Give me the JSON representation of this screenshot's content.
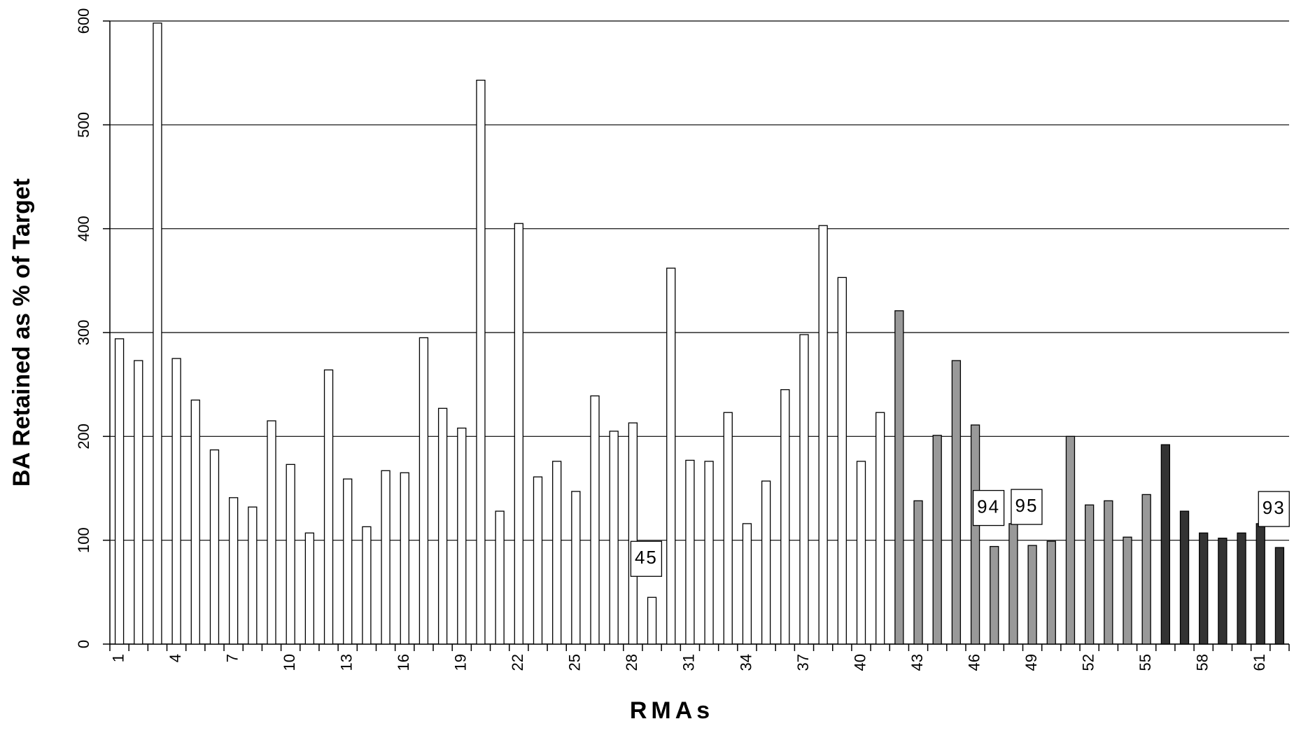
{
  "chart_data": {
    "type": "bar",
    "x_label": "RMAs",
    "y_label": "BA Retained as % of Target",
    "categories": [
      1,
      null,
      null,
      4,
      null,
      null,
      7,
      null,
      null,
      10,
      null,
      null,
      13,
      null,
      null,
      16,
      null,
      null,
      19,
      null,
      null,
      22,
      null,
      null,
      25,
      null,
      null,
      28,
      null,
      null,
      31,
      null,
      null,
      34,
      null,
      null,
      37,
      null,
      null,
      40,
      null,
      null,
      43,
      null,
      null,
      46,
      null,
      null,
      49,
      null,
      null,
      52,
      null,
      null,
      55,
      null,
      null,
      58,
      null,
      null,
      61,
      null
    ],
    "series": [
      {
        "color": "#ffffff",
        "values": [
          294,
          273,
          598,
          275,
          235,
          187,
          141,
          132,
          215,
          173,
          107,
          264,
          159,
          113,
          167,
          165,
          295,
          227,
          208,
          543,
          128,
          405,
          161,
          176,
          147,
          239,
          205,
          213,
          45,
          362,
          177,
          176,
          223,
          116,
          157,
          245,
          298,
          403,
          353,
          176,
          223,
          null,
          null,
          null,
          null,
          null,
          null,
          null,
          null,
          null,
          null,
          null,
          null,
          null,
          null,
          null,
          null,
          null,
          null,
          null,
          null,
          null
        ],
        "value_labels": [
          null,
          null,
          null,
          null,
          null,
          null,
          null,
          null,
          null,
          null,
          null,
          null,
          null,
          null,
          null,
          null,
          null,
          null,
          null,
          null,
          null,
          null,
          null,
          null,
          null,
          null,
          null,
          null,
          "45",
          null,
          null,
          null,
          null,
          null,
          null,
          null,
          null,
          null,
          null,
          null,
          null,
          null,
          null,
          null,
          null,
          null,
          null,
          null,
          null,
          null,
          null,
          null,
          null,
          null,
          null,
          null,
          null,
          null,
          null,
          null,
          null,
          null
        ]
      },
      {
        "color": "#999999",
        "values": [
          null,
          null,
          null,
          null,
          null,
          null,
          null,
          null,
          null,
          null,
          null,
          null,
          null,
          null,
          null,
          null,
          null,
          null,
          null,
          null,
          null,
          null,
          null,
          null,
          null,
          null,
          null,
          null,
          null,
          null,
          null,
          null,
          null,
          null,
          null,
          null,
          null,
          null,
          null,
          null,
          null,
          321,
          138,
          201,
          273,
          211,
          94,
          116,
          95,
          99,
          200,
          134,
          138,
          103,
          144,
          null,
          null,
          null,
          null,
          null,
          null,
          null
        ],
        "value_labels": [
          null,
          null,
          null,
          null,
          null,
          null,
          null,
          null,
          null,
          null,
          null,
          null,
          null,
          null,
          null,
          null,
          null,
          null,
          null,
          null,
          null,
          null,
          null,
          null,
          null,
          null,
          null,
          null,
          null,
          null,
          null,
          null,
          null,
          null,
          null,
          null,
          null,
          null,
          null,
          null,
          null,
          null,
          null,
          null,
          null,
          null,
          "94",
          null,
          "95",
          null,
          null,
          null,
          null,
          null,
          null,
          null,
          null,
          null,
          null,
          null,
          null,
          null
        ]
      },
      {
        "color": "#333333",
        "values": [
          null,
          null,
          null,
          null,
          null,
          null,
          null,
          null,
          null,
          null,
          null,
          null,
          null,
          null,
          null,
          null,
          null,
          null,
          null,
          null,
          null,
          null,
          null,
          null,
          null,
          null,
          null,
          null,
          null,
          null,
          null,
          null,
          null,
          null,
          null,
          null,
          null,
          null,
          null,
          null,
          null,
          null,
          null,
          null,
          null,
          null,
          null,
          null,
          null,
          null,
          null,
          null,
          null,
          null,
          null,
          192,
          128,
          107,
          102,
          107,
          116,
          93
        ],
        "value_labels": [
          null,
          null,
          null,
          null,
          null,
          null,
          null,
          null,
          null,
          null,
          null,
          null,
          null,
          null,
          null,
          null,
          null,
          null,
          null,
          null,
          null,
          null,
          null,
          null,
          null,
          null,
          null,
          null,
          null,
          null,
          null,
          null,
          null,
          null,
          null,
          null,
          null,
          null,
          null,
          null,
          null,
          null,
          null,
          null,
          null,
          null,
          null,
          null,
          null,
          null,
          null,
          null,
          null,
          null,
          null,
          null,
          null,
          null,
          null,
          null,
          null,
          "93"
        ]
      }
    ],
    "ylim": [
      0,
      600
    ],
    "yticks": [
      0,
      100,
      200,
      300,
      400,
      500,
      600
    ],
    "grid": true
  }
}
